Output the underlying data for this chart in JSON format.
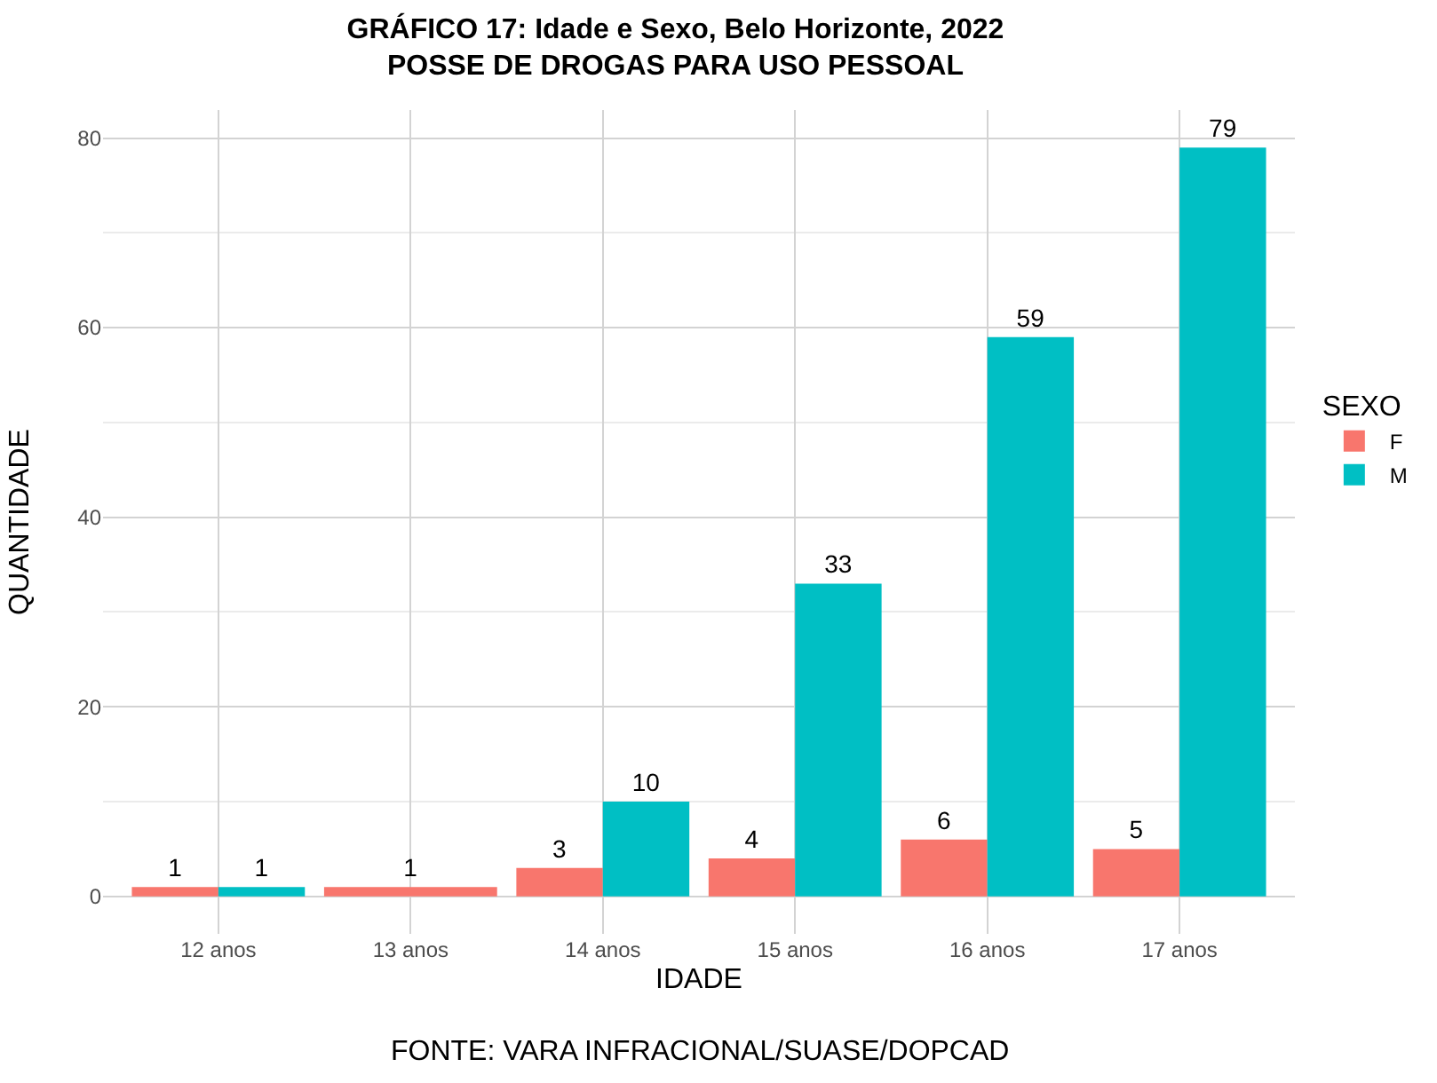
{
  "chart_data": {
    "type": "bar",
    "title": "GRÁFICO 17: Idade e Sexo, Belo Horizonte, 2022",
    "subtitle": "POSSE DE DROGAS PARA USO PESSOAL",
    "xlabel": "IDADE",
    "ylabel": "QUANTIDADE",
    "legend_title": "SEXO",
    "categories": [
      "12 anos",
      "13 anos",
      "14 anos",
      "15 anos",
      "16 anos",
      "17 anos"
    ],
    "series": [
      {
        "name": "F",
        "color": "#f8766d",
        "values": [
          1,
          1,
          3,
          4,
          6,
          5
        ]
      },
      {
        "name": "M",
        "color": "#00bfc4",
        "values": [
          1,
          null,
          10,
          33,
          59,
          79
        ]
      }
    ],
    "ylim": [
      -3.95,
      82.95
    ],
    "yticks": [
      0,
      20,
      40,
      60,
      80
    ],
    "grid": true,
    "legend": "right",
    "data_labels": true,
    "annotations": [
      "FONTE: VARA INFRACIONAL/SUASE/DOPCAD"
    ]
  }
}
